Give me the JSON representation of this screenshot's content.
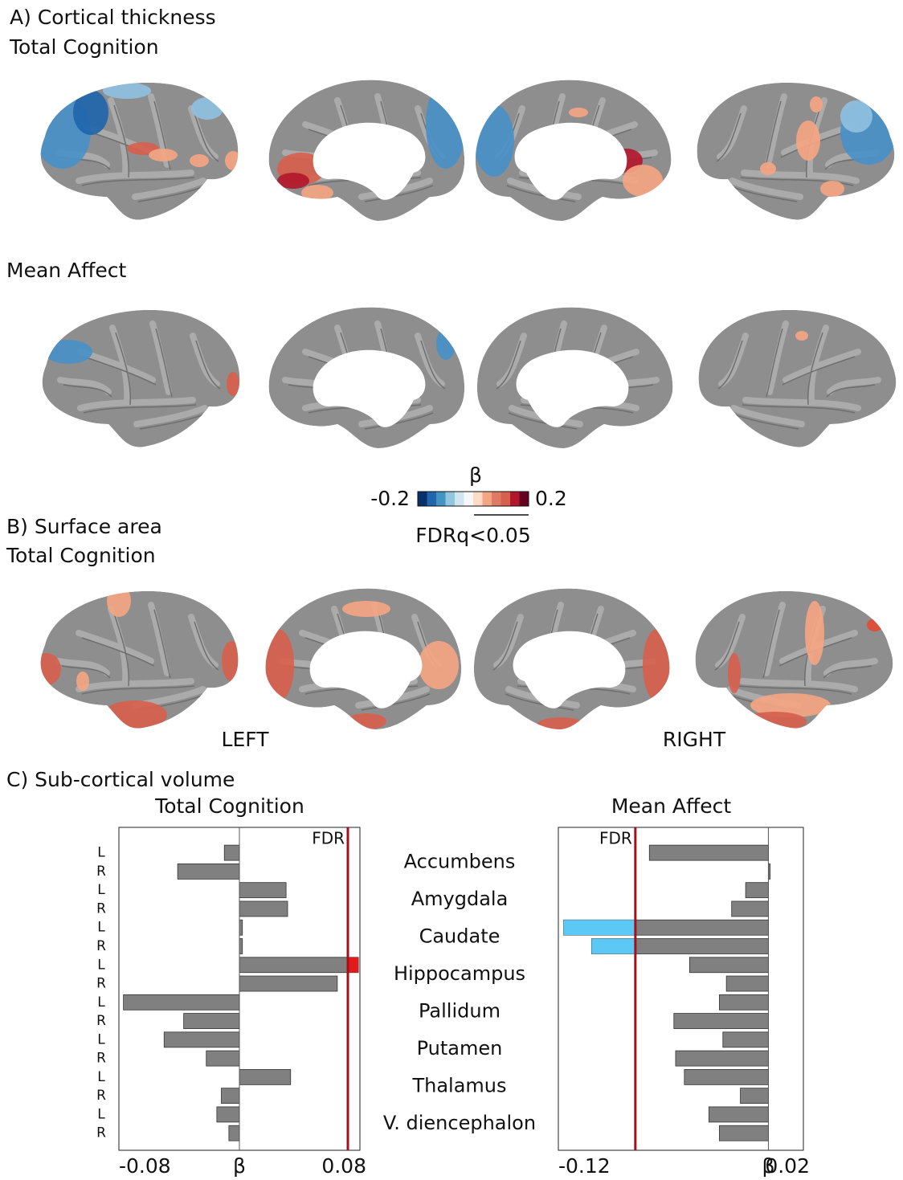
{
  "figure": {
    "panel_a": {
      "title": "A) Cortical thickness",
      "rows": [
        "Total Cognition",
        "Mean Affect"
      ]
    },
    "colorbar": {
      "label": "β",
      "lim": [
        -0.2,
        0.2
      ],
      "ticks": [
        -0.2,
        0.2
      ],
      "colors": [
        "#08306b",
        "#2166ac",
        "#4393c3",
        "#92c5de",
        "#d1e5f0",
        "#f7f7f7",
        "#fddbc7",
        "#f4a582",
        "#e07b63",
        "#d6604d",
        "#b2182b",
        "#67001f"
      ],
      "threshold_label": "FDRq<0.05"
    },
    "panel_b": {
      "title": "B) Surface area",
      "row": "Total Cognition",
      "hemispheres": [
        "LEFT",
        "RIGHT"
      ]
    },
    "panel_c": {
      "title": "C) Sub-cortical volume",
      "regions": [
        "Accumbens",
        "Amygdala",
        "Caudate",
        "Hippocampus",
        "Pallidum",
        "Putamen",
        "Thalamus",
        "V. diencephalon"
      ]
    }
  },
  "chart_data": [
    {
      "type": "bar",
      "orientation": "horizontal",
      "title": "Total Cognition",
      "categories": [
        "L",
        "R",
        "L",
        "R",
        "L",
        "R",
        "L",
        "R",
        "L",
        "R",
        "L",
        "R",
        "L",
        "R",
        "L",
        "R"
      ],
      "values": [
        -0.01,
        -0.041,
        0.031,
        0.032,
        0.002,
        0.002,
        0.079,
        0.065,
        -0.077,
        -0.037,
        -0.05,
        -0.022,
        0.034,
        -0.012,
        -0.015,
        -0.007
      ],
      "color": "#808080",
      "highlight_color": "#e31a1c",
      "threshold": 0.072,
      "threshold_label": "FDR",
      "threshold_color": "#a50f15",
      "xlabel": "β",
      "xlim": [
        -0.08,
        0.08
      ],
      "xticks": [
        -0.08,
        0.08
      ]
    },
    {
      "type": "bar",
      "orientation": "horizontal",
      "title": "Mean Affect",
      "values": [
        -0.068,
        0.001,
        -0.013,
        -0.021,
        -0.117,
        -0.101,
        -0.045,
        -0.024,
        -0.028,
        -0.054,
        -0.026,
        -0.053,
        -0.048,
        -0.016,
        -0.034,
        -0.028
      ],
      "color": "#808080",
      "highlight_color": "#5bc8f5",
      "threshold": -0.076,
      "threshold_label": "FDR",
      "threshold_color": "#a50f15",
      "xlabel": "β",
      "xlim": [
        -0.12,
        0.02
      ],
      "xticks": [
        -0.12,
        0.02
      ]
    }
  ]
}
